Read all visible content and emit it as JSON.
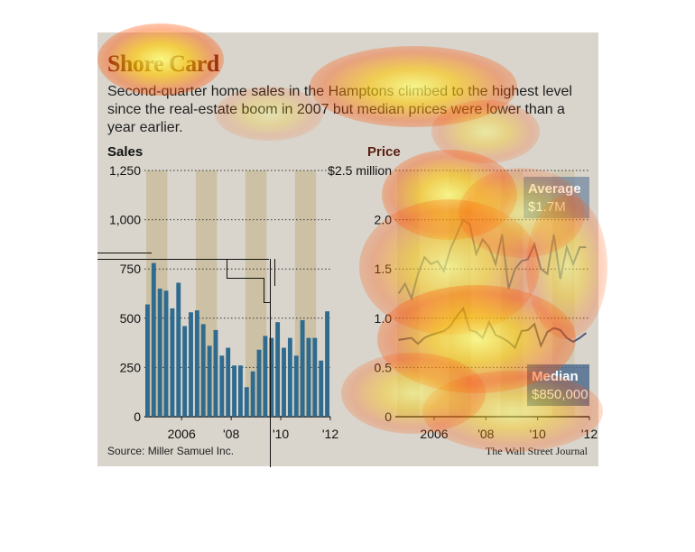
{
  "header": {
    "title": "Shore Card",
    "subtitle": "Second-quarter home sales in the Hamptons climbed to the highest level since the real-estate boom in 2007 but median prices were lower than a year earlier."
  },
  "footer": {
    "source": "Source: Miller Samuel Inc.",
    "credit": "The Wall Street Journal"
  },
  "colors": {
    "panel": "#d9d5cc",
    "band": "#c9bd9d",
    "bar": "#2f6b8f",
    "average_line": "#6f7e98",
    "median_line": "#4f5a78",
    "label_box": "#4f6e90"
  },
  "chart_data": [
    {
      "type": "bar",
      "title": "Sales",
      "yticks": [
        "1,250",
        "1,000",
        "750",
        "500",
        "250",
        "0"
      ],
      "ylim": [
        0,
        1250
      ],
      "xticks": [
        "2006",
        "'08",
        "'10",
        "'12"
      ],
      "x_start": 2005.0,
      "quarters_per_year": 4,
      "values": [
        570,
        780,
        650,
        640,
        550,
        680,
        460,
        530,
        540,
        470,
        360,
        440,
        310,
        350,
        260,
        260,
        150,
        230,
        340,
        410,
        400,
        480,
        350,
        400,
        310,
        490,
        400,
        400,
        285,
        535
      ]
    },
    {
      "type": "line",
      "title": "Price",
      "yticks": [
        "$2.5 million",
        "2.0",
        "1.5",
        "1.0",
        "0.5",
        "0"
      ],
      "ylim": [
        0,
        2.5
      ],
      "xticks": [
        "2006",
        "'08",
        "'10",
        "'12"
      ],
      "x_start": 2005.0,
      "quarters_per_year": 4,
      "series": [
        {
          "name": "Average",
          "values": [
            1.25,
            1.35,
            1.2,
            1.45,
            1.62,
            1.55,
            1.58,
            1.48,
            1.7,
            1.85,
            2.0,
            1.95,
            1.65,
            1.8,
            1.72,
            1.55,
            1.85,
            1.3,
            1.5,
            1.58,
            1.6,
            1.75,
            1.5,
            1.45,
            1.85,
            1.4,
            1.72,
            1.55,
            1.72,
            1.72
          ],
          "label_value": "$1.7M"
        },
        {
          "name": "Median",
          "values": [
            0.78,
            0.79,
            0.8,
            0.74,
            0.8,
            0.83,
            0.85,
            0.87,
            0.92,
            1.02,
            1.1,
            0.88,
            0.86,
            0.8,
            0.96,
            0.83,
            0.8,
            0.76,
            0.7,
            0.87,
            0.88,
            0.94,
            0.72,
            0.86,
            0.9,
            0.88,
            0.8,
            0.76,
            0.8,
            0.85
          ],
          "label_value": "$850,000"
        }
      ]
    }
  ]
}
